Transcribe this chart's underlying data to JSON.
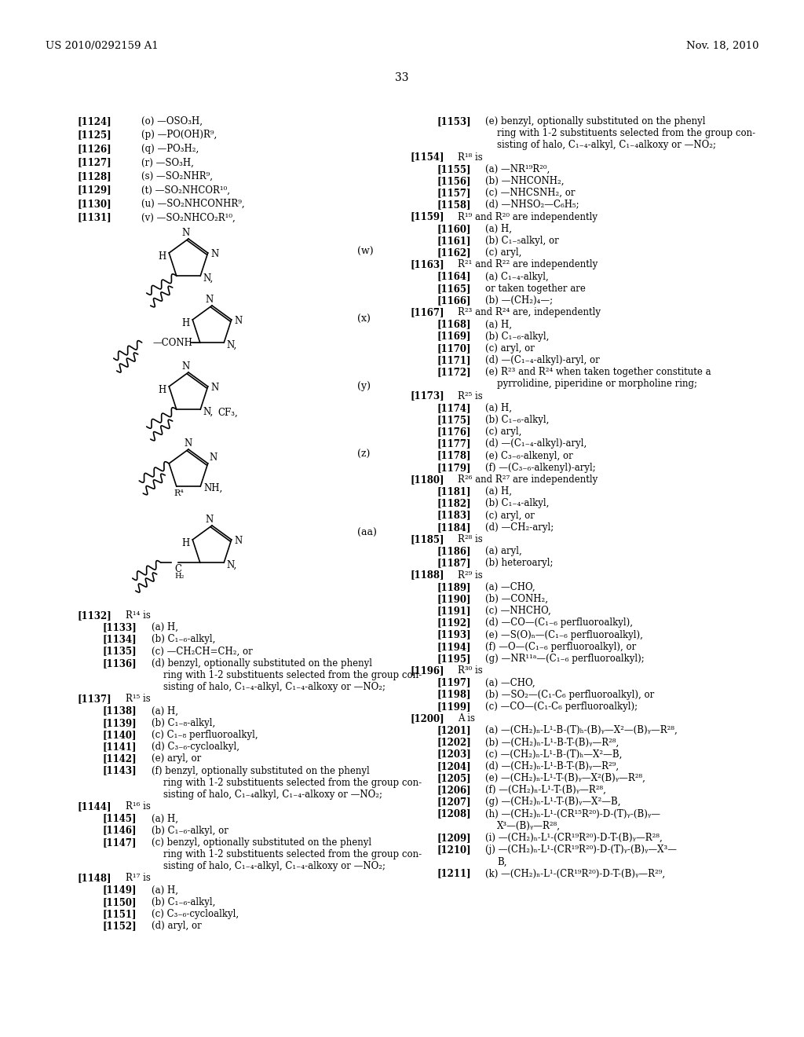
{
  "header_left": "US 2010/0292159 A1",
  "header_right": "Nov. 18, 2010",
  "page_number": "33",
  "background": "#ffffff",
  "left_column_text": [
    {
      "num": "[1124]",
      "text": "(o) —OSO₃H,"
    },
    {
      "num": "[1125]",
      "text": "(p) —PO(OH)R⁹,"
    },
    {
      "num": "[1126]",
      "text": "(q) —PO₃H₂,"
    },
    {
      "num": "[1127]",
      "text": "(r) —SO₃H,"
    },
    {
      "num": "[1128]",
      "text": "(s) —SO₂NHR⁹,"
    },
    {
      "num": "[1129]",
      "text": "(t) —SO₂NHCOR¹⁰,"
    },
    {
      "num": "[1130]",
      "text": "(u) —SO₂NHCONHR⁹,"
    },
    {
      "num": "[1131]",
      "text": "(v) —SO₂NHCO₂R¹⁰,"
    }
  ],
  "bottom_left_text": [
    {
      "num": "[1132]",
      "indent": 0,
      "text": "R¹⁴ is"
    },
    {
      "num": "[1133]",
      "indent": 1,
      "text": "(a) H,"
    },
    {
      "num": "[1134]",
      "indent": 1,
      "text": "(b) C₁₋₆-alkyl,"
    },
    {
      "num": "[1135]",
      "indent": 1,
      "text": "(c) —CH₂CH=CH₂, or"
    },
    {
      "num": "[1136]",
      "indent": 1,
      "text": "(d) benzyl, optionally substituted on the phenyl"
    },
    {
      "num": "",
      "indent": 2,
      "text": "ring with 1-2 substituents selected from the group con-"
    },
    {
      "num": "",
      "indent": 2,
      "text": "sisting of halo, C₁₋₄-alkyl, C₁₋₄-alkoxy or —NO₂;"
    },
    {
      "num": "[1137]",
      "indent": 0,
      "text": "R¹⁵ is"
    },
    {
      "num": "[1138]",
      "indent": 1,
      "text": "(a) H,"
    },
    {
      "num": "[1139]",
      "indent": 1,
      "text": "(b) C₁₋₈-alkyl,"
    },
    {
      "num": "[1140]",
      "indent": 1,
      "text": "(c) C₁₋₈ perfluoroalkyl,"
    },
    {
      "num": "[1141]",
      "indent": 1,
      "text": "(d) C₃₋₆-cycloalkyl,"
    },
    {
      "num": "[1142]",
      "indent": 1,
      "text": "(e) aryl, or"
    },
    {
      "num": "[1143]",
      "indent": 1,
      "text": "(f) benzyl, optionally substituted on the phenyl"
    },
    {
      "num": "",
      "indent": 2,
      "text": "ring with 1-2 substituents selected from the group con-"
    },
    {
      "num": "",
      "indent": 2,
      "text": "sisting of halo, C₁₋₄alkyl, C₁₋₄-alkoxy or —NO₂;"
    },
    {
      "num": "[1144]",
      "indent": 0,
      "text": "R¹⁶ is"
    },
    {
      "num": "[1145]",
      "indent": 1,
      "text": "(a) H,"
    },
    {
      "num": "[1146]",
      "indent": 1,
      "text": "(b) C₁₋₆-alkyl, or"
    },
    {
      "num": "[1147]",
      "indent": 1,
      "text": "(c) benzyl, optionally substituted on the phenyl"
    },
    {
      "num": "",
      "indent": 2,
      "text": "ring with 1-2 substituents selected from the group con-"
    },
    {
      "num": "",
      "indent": 2,
      "text": "sisting of halo, C₁₋₄-alkyl, C₁₋₄-alkoxy or —NO₂;"
    },
    {
      "num": "[1148]",
      "indent": 0,
      "text": "R¹⁷ is"
    },
    {
      "num": "[1149]",
      "indent": 1,
      "text": "(a) H,"
    },
    {
      "num": "[1150]",
      "indent": 1,
      "text": "(b) C₁₋₆-alkyl,"
    },
    {
      "num": "[1151]",
      "indent": 1,
      "text": "(c) C₃₋₆-cycloalkyl,"
    },
    {
      "num": "[1152]",
      "indent": 1,
      "text": "(d) aryl, or"
    }
  ],
  "right_column_text": [
    {
      "num": "[1153]",
      "indent": 1,
      "text": "(e) benzyl, optionally substituted on the phenyl"
    },
    {
      "num": "",
      "indent": 2,
      "text": "ring with 1-2 substituents selected from the group con-"
    },
    {
      "num": "",
      "indent": 2,
      "text": "sisting of halo, C₁₋₄-alkyl, C₁₋₄alkoxy or —NO₂;"
    },
    {
      "num": "[1154]",
      "indent": 0,
      "text": "R¹⁸ is"
    },
    {
      "num": "[1155]",
      "indent": 1,
      "text": "(a) —NR¹⁹R²⁰,"
    },
    {
      "num": "[1156]",
      "indent": 1,
      "text": "(b) —NHCONH₂,"
    },
    {
      "num": "[1157]",
      "indent": 1,
      "text": "(c) —NHCSNH₂, or"
    },
    {
      "num": "[1158]",
      "indent": 1,
      "text": "(d) —NHSO₂—C₆H₅;"
    },
    {
      "num": "[1159]",
      "indent": 0,
      "text": "R¹⁹ and R²⁰ are independently"
    },
    {
      "num": "[1160]",
      "indent": 1,
      "text": "(a) H,"
    },
    {
      "num": "[1161]",
      "indent": 1,
      "text": "(b) C₁₋₅alkyl, or"
    },
    {
      "num": "[1162]",
      "indent": 1,
      "text": "(c) aryl,"
    },
    {
      "num": "[1163]",
      "indent": 0,
      "text": "R²¹ and R²² are independently"
    },
    {
      "num": "[1164]",
      "indent": 1,
      "text": "(a) C₁₋₄-alkyl,"
    },
    {
      "num": "[1165]",
      "indent": 1,
      "text": "or taken together are"
    },
    {
      "num": "[1166]",
      "indent": 1,
      "text": "(b) —(CH₂)₄—;"
    },
    {
      "num": "[1167]",
      "indent": 0,
      "text": "R²³ and R²⁴ are, independently"
    },
    {
      "num": "[1168]",
      "indent": 1,
      "text": "(a) H,"
    },
    {
      "num": "[1169]",
      "indent": 1,
      "text": "(b) C₁₋₆-alkyl,"
    },
    {
      "num": "[1170]",
      "indent": 1,
      "text": "(c) aryl, or"
    },
    {
      "num": "[1171]",
      "indent": 1,
      "text": "(d) —(C₁₋₄-alkyl)-aryl, or"
    },
    {
      "num": "[1172]",
      "indent": 1,
      "text": "(e) R²³ and R²⁴ when taken together constitute a"
    },
    {
      "num": "",
      "indent": 2,
      "text": "pyrrolidine, piperidine or morpholine ring;"
    },
    {
      "num": "[1173]",
      "indent": 0,
      "text": "R²⁵ is"
    },
    {
      "num": "[1174]",
      "indent": 1,
      "text": "(a) H,"
    },
    {
      "num": "[1175]",
      "indent": 1,
      "text": "(b) C₁₋₆-alkyl,"
    },
    {
      "num": "[1176]",
      "indent": 1,
      "text": "(c) aryl,"
    },
    {
      "num": "[1177]",
      "indent": 1,
      "text": "(d) —(C₁₋₄-alkyl)-aryl,"
    },
    {
      "num": "[1178]",
      "indent": 1,
      "text": "(e) C₃₋₆-alkenyl, or"
    },
    {
      "num": "[1179]",
      "indent": 1,
      "text": "(f) —(C₃₋₆-alkenyl)-aryl;"
    },
    {
      "num": "[1180]",
      "indent": 0,
      "text": "R²⁶ and R²⁷ are independently"
    },
    {
      "num": "[1181]",
      "indent": 1,
      "text": "(a) H,"
    },
    {
      "num": "[1182]",
      "indent": 1,
      "text": "(b) C₁₋₄-alkyl,"
    },
    {
      "num": "[1183]",
      "indent": 1,
      "text": "(c) aryl, or"
    },
    {
      "num": "[1184]",
      "indent": 1,
      "text": "(d) —CH₂-aryl;"
    },
    {
      "num": "[1185]",
      "indent": 0,
      "text": "R²⁸ is"
    },
    {
      "num": "[1186]",
      "indent": 1,
      "text": "(a) aryl,"
    },
    {
      "num": "[1187]",
      "indent": 1,
      "text": "(b) heteroaryl;"
    },
    {
      "num": "[1188]",
      "indent": 0,
      "text": "R²⁹ is"
    },
    {
      "num": "[1189]",
      "indent": 1,
      "text": "(a) —CHO,"
    },
    {
      "num": "[1190]",
      "indent": 1,
      "text": "(b) —CONH₂,"
    },
    {
      "num": "[1191]",
      "indent": 1,
      "text": "(c) —NHCHO,"
    },
    {
      "num": "[1192]",
      "indent": 1,
      "text": "(d) —CO—(C₁₋₆ perfluoroalkyl),"
    },
    {
      "num": "[1193]",
      "indent": 1,
      "text": "(e) —S(O)ₙ—(C₁₋₆ perfluoroalkyl),"
    },
    {
      "num": "[1194]",
      "indent": 1,
      "text": "(f) —O—(C₁₋₆ perfluoroalkyl), or"
    },
    {
      "num": "[1195]",
      "indent": 1,
      "text": "(g) —NR¹¹ᵃ—(C₁₋₆ perfluoroalkyl);"
    },
    {
      "num": "[1196]",
      "indent": 0,
      "text": "R³⁰ is"
    },
    {
      "num": "[1197]",
      "indent": 1,
      "text": "(a) —CHO,"
    },
    {
      "num": "[1198]",
      "indent": 1,
      "text": "(b) —SO₂—(C₁-C₆ perfluoroalkyl), or"
    },
    {
      "num": "[1199]",
      "indent": 1,
      "text": "(c) —CO—(C₁-C₆ perfluoroalkyl);"
    },
    {
      "num": "[1200]",
      "indent": 0,
      "text": "A is"
    },
    {
      "num": "[1201]",
      "indent": 1,
      "text": "(a) —(CH₂)ₙ-L¹-B-(T)ₕ-(B)ᵧ—X²—(B)ᵧ—R²⁸,"
    },
    {
      "num": "[1202]",
      "indent": 1,
      "text": "(b) —(CH₂)ₙ-L¹-B-T-(B)ᵧ—R²⁸,"
    },
    {
      "num": "[1203]",
      "indent": 1,
      "text": "(c) —(CH₂)ₙ-L¹-B-(T)ₕ—X²—B,"
    },
    {
      "num": "[1204]",
      "indent": 1,
      "text": "(d) —(CH₂)ₙ-L¹-B-T-(B)ᵧ—R²⁹,"
    },
    {
      "num": "[1205]",
      "indent": 1,
      "text": "(e) —(CH₂)ₙ-L¹-T-(B)ᵧ—X²(B)ᵧ—R²⁸,"
    },
    {
      "num": "[1206]",
      "indent": 1,
      "text": "(f) —(CH₂)ₙ-L¹-T-(B)ᵧ—R²⁸,"
    },
    {
      "num": "[1207]",
      "indent": 1,
      "text": "(g) —(CH₂)ₙ-L¹-T-(B)ᵧ—X²—B,"
    },
    {
      "num": "[1208]",
      "indent": 1,
      "text": "(h) —(CH₂)ₙ-L¹-(CR¹⁵R²⁰)-D-(T)ᵧ-(B)ᵧ—"
    },
    {
      "num": "",
      "indent": 2,
      "text": "X³—(B)ᵧ—R²⁸,"
    },
    {
      "num": "[1209]",
      "indent": 1,
      "text": "(i) —(CH₂)ₙ-L¹-(CR¹⁹R²⁰)-D-T-(B)ᵧ—R²⁸,"
    },
    {
      "num": "[1210]",
      "indent": 1,
      "text": "(j) —(CH₂)ₙ-L¹-(CR¹⁹R²⁰)-D-(T)ᵧ-(B)ᵧ—X³—"
    },
    {
      "num": "",
      "indent": 2,
      "text": "B,"
    },
    {
      "num": "[1211]",
      "indent": 1,
      "text": "(k) —(CH₂)ₙ-L¹-(CR¹⁹R²⁰)-D-T-(B)ᵧ—R²⁹,"
    }
  ]
}
